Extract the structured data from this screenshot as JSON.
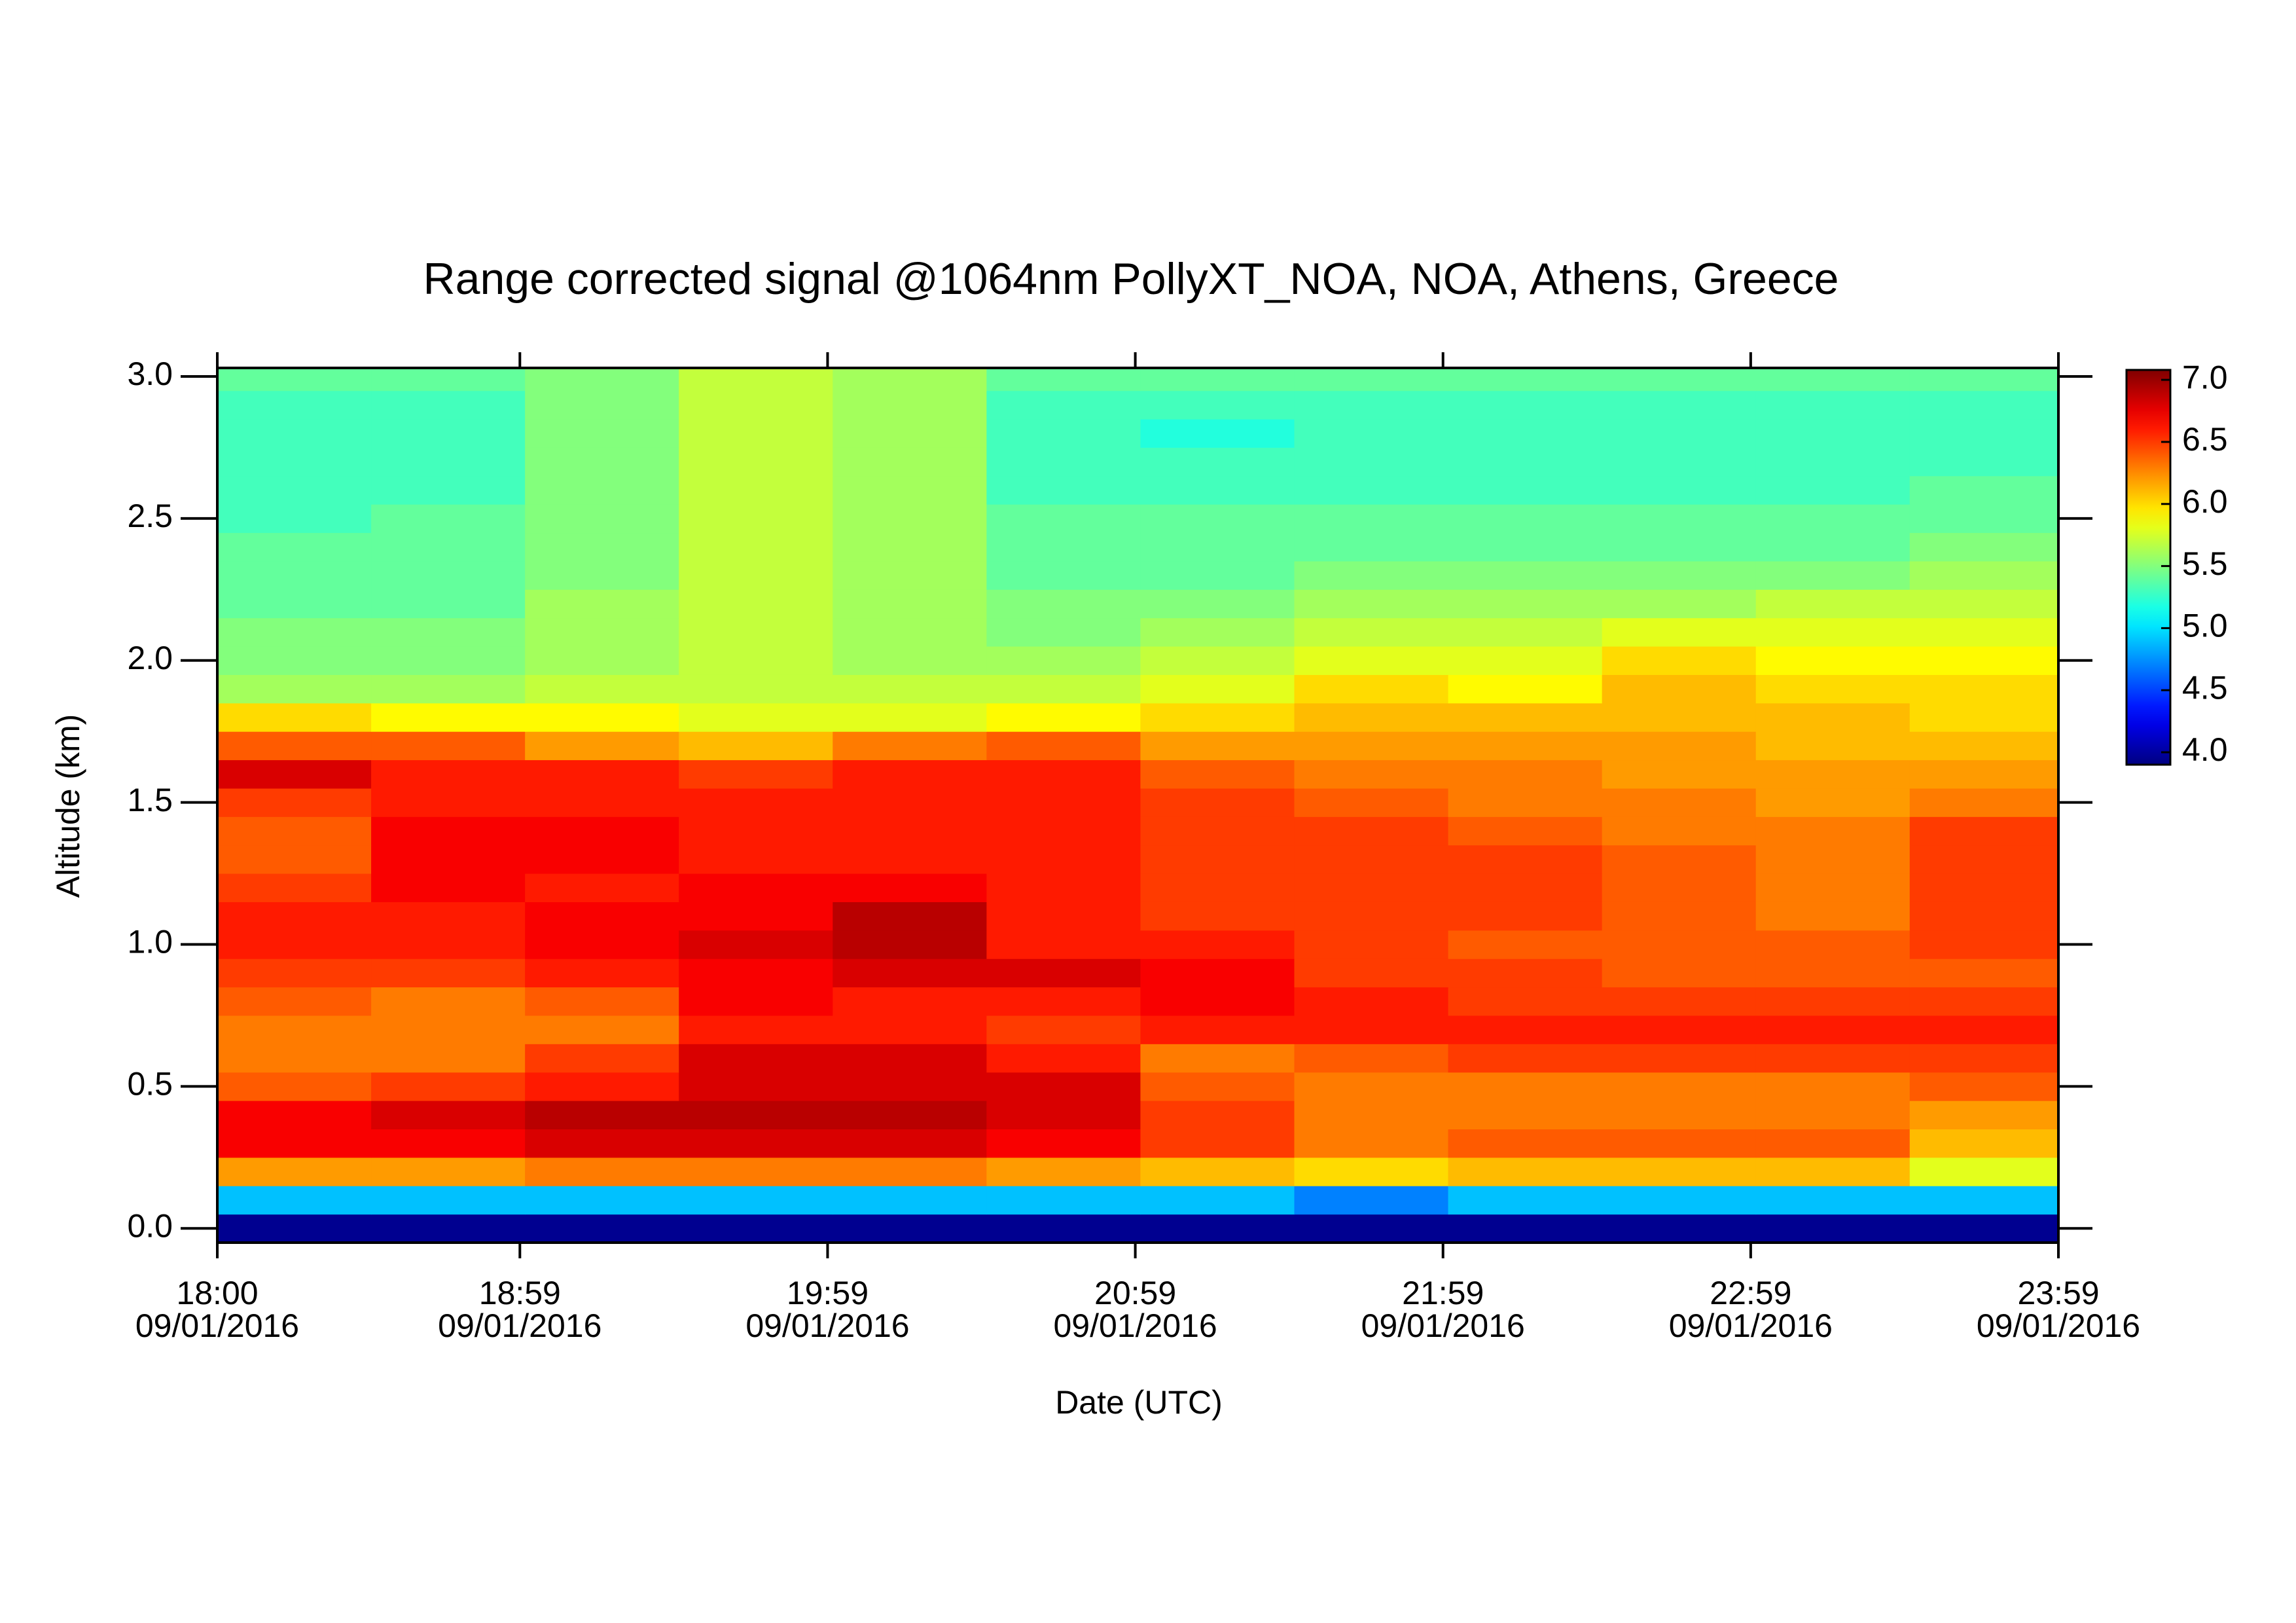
{
  "chart_data": {
    "type": "heatmap",
    "title": "Range corrected signal @1064nm  PollyXT_NOA, NOA, Athens, Greece",
    "x_label": "Date (UTC)",
    "y_label": "Altitude (km)",
    "colormap": "jet",
    "xlim": [
      18,
      23.98333
    ],
    "ylim": [
      -0.05,
      3.03
    ],
    "clim": [
      3.9,
      7.08
    ],
    "xticks": [
      {
        "value": 18,
        "label": [
          "18:00",
          "09/01/2016"
        ]
      },
      {
        "value": 18.98333,
        "label": [
          "18:59",
          "09/01/2016"
        ]
      },
      {
        "value": 19.98333,
        "label": [
          "19:59",
          "09/01/2016"
        ]
      },
      {
        "value": 20.98333,
        "label": [
          "20:59",
          "09/01/2016"
        ]
      },
      {
        "value": 21.98333,
        "label": [
          "21:59",
          "09/01/2016"
        ]
      },
      {
        "value": 22.98333,
        "label": [
          "22:59",
          "09/01/2016"
        ]
      },
      {
        "value": 23.98333,
        "label": [
          "23:59",
          "09/01/2016"
        ]
      }
    ],
    "yticks": [
      {
        "value": 0,
        "label": "0.0"
      },
      0.5,
      {
        "value": 1,
        "label": "1.0"
      },
      1.5,
      {
        "value": 2,
        "label": "2.0"
      },
      2.5,
      {
        "value": 3,
        "label": "3.0"
      }
    ],
    "cticks": [
      {
        "value": 4,
        "label": "4.0"
      },
      4.5,
      {
        "value": 5,
        "label": "5.0"
      },
      5.5,
      {
        "value": 6,
        "label": "6.0"
      },
      6.5,
      {
        "value": 7,
        "label": "7.0"
      }
    ],
    "x": [
      18.25,
      18.75,
      19.25,
      19.75,
      20.25,
      20.75,
      21.25,
      21.75,
      22.25,
      22.75,
      23.25,
      23.75
    ],
    "y": [
      0,
      0.1,
      0.2,
      0.3,
      0.4,
      0.5,
      0.6,
      0.7,
      0.8,
      0.9,
      1,
      1.1,
      1.2,
      1.3,
      1.4,
      1.5,
      1.6,
      1.7,
      1.8,
      1.9,
      2,
      2.1,
      2.2,
      2.3,
      2.4,
      2.5,
      2.6,
      2.7,
      2.8,
      2.9,
      3
    ],
    "z": [
      [
        3.95,
        3.95,
        3.95,
        3.95,
        3.95,
        3.95,
        3.95,
        3.95,
        3.95,
        3.95,
        3.95,
        3.95
      ],
      [
        4.9,
        4.9,
        4.9,
        4.9,
        4.9,
        4.9,
        4.9,
        4.7,
        4.9,
        4.9,
        4.9,
        4.9
      ],
      [
        6.2,
        6.2,
        6.3,
        6.3,
        6.3,
        6.2,
        6.1,
        6.0,
        6.1,
        6.1,
        6.1,
        5.8
      ],
      [
        6.7,
        6.7,
        6.8,
        6.8,
        6.8,
        6.7,
        6.5,
        6.3,
        6.4,
        6.4,
        6.4,
        6.1
      ],
      [
        6.7,
        6.8,
        6.9,
        6.9,
        6.9,
        6.8,
        6.5,
        6.3,
        6.3,
        6.3,
        6.3,
        6.2
      ],
      [
        6.4,
        6.5,
        6.6,
        6.8,
        6.8,
        6.8,
        6.4,
        6.3,
        6.3,
        6.3,
        6.3,
        6.4
      ],
      [
        6.3,
        6.3,
        6.5,
        6.8,
        6.8,
        6.6,
        6.3,
        6.4,
        6.5,
        6.5,
        6.5,
        6.5
      ],
      [
        6.3,
        6.3,
        6.3,
        6.6,
        6.6,
        6.5,
        6.6,
        6.6,
        6.6,
        6.6,
        6.6,
        6.6
      ],
      [
        6.4,
        6.3,
        6.4,
        6.7,
        6.6,
        6.6,
        6.7,
        6.6,
        6.5,
        6.5,
        6.5,
        6.5
      ],
      [
        6.5,
        6.5,
        6.6,
        6.7,
        6.8,
        6.8,
        6.7,
        6.5,
        6.5,
        6.4,
        6.4,
        6.4
      ],
      [
        6.6,
        6.6,
        6.7,
        6.8,
        6.9,
        6.6,
        6.6,
        6.5,
        6.4,
        6.4,
        6.4,
        6.5
      ],
      [
        6.6,
        6.6,
        6.7,
        6.7,
        6.9,
        6.6,
        6.5,
        6.5,
        6.5,
        6.4,
        6.3,
        6.5
      ],
      [
        6.5,
        6.7,
        6.6,
        6.7,
        6.7,
        6.6,
        6.5,
        6.5,
        6.5,
        6.4,
        6.3,
        6.5
      ],
      [
        6.4,
        6.7,
        6.7,
        6.6,
        6.6,
        6.6,
        6.5,
        6.5,
        6.5,
        6.4,
        6.3,
        6.5
      ],
      [
        6.4,
        6.7,
        6.7,
        6.6,
        6.6,
        6.6,
        6.5,
        6.5,
        6.4,
        6.3,
        6.3,
        6.5
      ],
      [
        6.5,
        6.6,
        6.6,
        6.6,
        6.6,
        6.6,
        6.5,
        6.4,
        6.3,
        6.3,
        6.2,
        6.3
      ],
      [
        6.8,
        6.6,
        6.6,
        6.5,
        6.6,
        6.6,
        6.4,
        6.3,
        6.3,
        6.2,
        6.2,
        6.2
      ],
      [
        6.4,
        6.4,
        6.2,
        6.1,
        6.3,
        6.4,
        6.2,
        6.2,
        6.2,
        6.2,
        6.1,
        6.1
      ],
      [
        6.0,
        5.9,
        5.9,
        5.8,
        5.8,
        5.9,
        6.0,
        6.1,
        6.1,
        6.1,
        6.1,
        6.0
      ],
      [
        5.6,
        5.6,
        5.7,
        5.7,
        5.7,
        5.7,
        5.8,
        6.0,
        5.9,
        6.1,
        6.0,
        6.0
      ],
      [
        5.5,
        5.5,
        5.6,
        5.7,
        5.6,
        5.6,
        5.7,
        5.8,
        5.8,
        6.0,
        5.9,
        5.9
      ],
      [
        5.5,
        5.5,
        5.6,
        5.7,
        5.6,
        5.5,
        5.6,
        5.7,
        5.7,
        5.8,
        5.8,
        5.8
      ],
      [
        5.4,
        5.4,
        5.6,
        5.7,
        5.6,
        5.5,
        5.5,
        5.6,
        5.6,
        5.6,
        5.7,
        5.7
      ],
      [
        5.4,
        5.4,
        5.5,
        5.7,
        5.6,
        5.4,
        5.4,
        5.5,
        5.5,
        5.5,
        5.5,
        5.6
      ],
      [
        5.4,
        5.4,
        5.5,
        5.7,
        5.6,
        5.4,
        5.4,
        5.4,
        5.4,
        5.4,
        5.4,
        5.5
      ],
      [
        5.3,
        5.4,
        5.5,
        5.7,
        5.6,
        5.4,
        5.4,
        5.4,
        5.4,
        5.4,
        5.4,
        5.4
      ],
      [
        5.3,
        5.3,
        5.5,
        5.7,
        5.6,
        5.3,
        5.3,
        5.3,
        5.3,
        5.3,
        5.3,
        5.4
      ],
      [
        5.3,
        5.3,
        5.5,
        5.7,
        5.6,
        5.3,
        5.3,
        5.3,
        5.3,
        5.3,
        5.3,
        5.3
      ],
      [
        5.3,
        5.3,
        5.5,
        5.7,
        5.6,
        5.3,
        5.2,
        5.3,
        5.3,
        5.3,
        5.3,
        5.3
      ],
      [
        5.3,
        5.3,
        5.5,
        5.7,
        5.6,
        5.3,
        5.3,
        5.3,
        5.3,
        5.3,
        5.3,
        5.3
      ],
      [
        5.4,
        5.4,
        5.5,
        5.7,
        5.6,
        5.4,
        5.4,
        5.4,
        5.4,
        5.4,
        5.4,
        5.4
      ]
    ]
  }
}
